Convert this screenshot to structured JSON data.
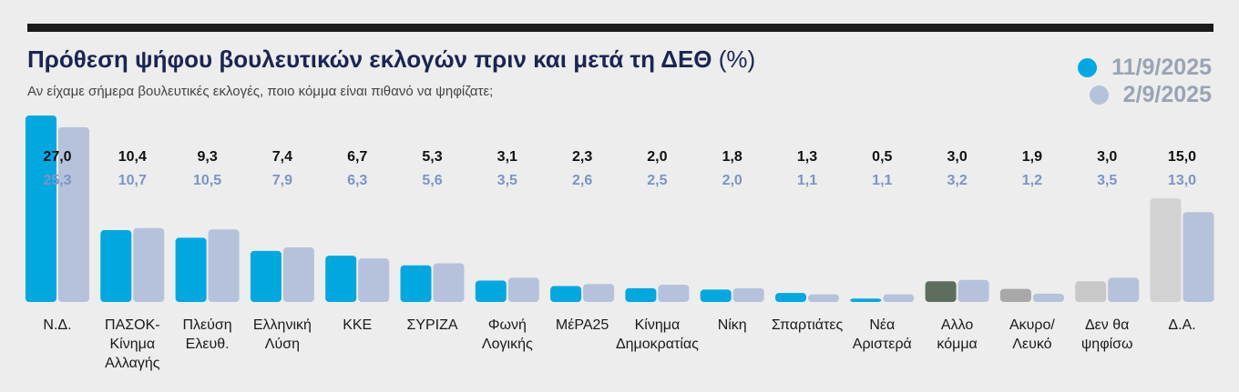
{
  "header": {
    "title": "Πρόθεση ψήφου βουλευτικών εκλογών πριν και μετά τη ΔΕΘ",
    "title_unit": "(%)",
    "subtitle": "Αν είχαμε σήμερα βουλευτικές εκλογές, ποιο κόμμα είναι πιθανό να ψηφίζατε;"
  },
  "colors": {
    "series1": "#00a8e0",
    "series2": "#b6c2dc",
    "series1_label": "#111111",
    "series2_label": "#7b94c8",
    "legend1_text": "#9aa4b4",
    "legend2_text": "#9aa4b4",
    "other_party_1": "#5e6e5e",
    "invalid_1": "#a8a8a8",
    "abstain_1": "#c8c8c8",
    "undecided_1": "#d2d2d2"
  },
  "chart_data": {
    "type": "bar",
    "series": [
      {
        "name": "11/9/2025",
        "values": [
          27.0,
          10.4,
          9.3,
          7.4,
          6.7,
          5.3,
          3.1,
          2.3,
          2.0,
          1.8,
          1.3,
          0.5,
          3.0,
          1.9,
          3.0,
          15.0
        ]
      },
      {
        "name": "2/9/2025",
        "values": [
          25.3,
          10.7,
          10.5,
          7.9,
          6.3,
          5.6,
          3.5,
          2.6,
          2.5,
          2.0,
          1.1,
          1.1,
          3.2,
          1.2,
          3.5,
          13.0
        ]
      }
    ],
    "series_labels": [
      [
        "27,0",
        "10,4",
        "9,3",
        "7,4",
        "6,7",
        "5,3",
        "3,1",
        "2,3",
        "2,0",
        "1,8",
        "1,3",
        "0,5",
        "3,0",
        "1,9",
        "3,0",
        "15,0"
      ],
      [
        "25,3",
        "10,7",
        "10,5",
        "7,9",
        "6,3",
        "5,6",
        "3,5",
        "2,6",
        "2,5",
        "2,0",
        "1,1",
        "1,1",
        "3,2",
        "1,2",
        "3,5",
        "13,0"
      ]
    ],
    "categories": [
      [
        "Ν.Δ."
      ],
      [
        "ΠΑΣΟΚ-",
        "Κίνημα",
        "Αλλαγής"
      ],
      [
        "Πλεύση",
        "Ελευθ."
      ],
      [
        "Ελληνική",
        "Λύση"
      ],
      [
        "ΚΚΕ"
      ],
      [
        "ΣΥΡΙΖΑ"
      ],
      [
        "Φωνή",
        "Λογικής"
      ],
      [
        "ΜέΡΑ25"
      ],
      [
        "Κίνημα",
        "Δημοκρατίας"
      ],
      [
        "Νίκη"
      ],
      [
        "Σπαρτιάτες"
      ],
      [
        "Νέα",
        "Αριστερά"
      ],
      [
        "Αλλο",
        "κόμμα"
      ],
      [
        "Ακυρο/",
        "Λευκό"
      ],
      [
        "Δεν θα",
        "ψηφίσω"
      ],
      [
        "Δ.Α."
      ]
    ],
    "series1_color_overrides": {
      "12": "#5e6e5e",
      "13": "#a8a8a8",
      "14": "#c8c8c8",
      "15": "#d2d2d2"
    },
    "ylim": [
      0,
      27
    ],
    "grid": false,
    "legend": "top-right"
  }
}
